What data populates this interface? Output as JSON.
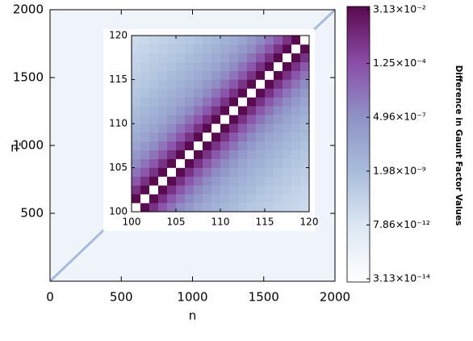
{
  "chart_data": [
    {
      "type": "line",
      "xlabel": "n",
      "ylabel": "n'",
      "xlim": [
        0,
        2000
      ],
      "ylim": [
        0,
        2000
      ],
      "xticks": [
        0,
        500,
        1000,
        1500,
        2000
      ],
      "yticks": [
        500,
        1000,
        1500,
        2000
      ],
      "background": "#eef4fa",
      "series": [
        {
          "color": "#a8bbdc",
          "x": [
            0,
            2000
          ],
          "values": [
            0,
            2000
          ]
        }
      ]
    },
    {
      "type": "heatmap",
      "xlim": [
        100,
        120
      ],
      "ylim": [
        100,
        120
      ],
      "xticks": [
        100,
        105,
        110,
        115,
        120
      ],
      "yticks": [
        100,
        105,
        110,
        115,
        120
      ],
      "zscale": "log",
      "zlim": [
        3.13e-14,
        0.0313
      ],
      "zticks": [
        {
          "value": 0.0313,
          "label": "3.13×10⁻²"
        },
        {
          "value": 0.000125,
          "label": "1.25×10⁻⁴"
        },
        {
          "value": 4.96e-07,
          "label": "4.96×10⁻⁷"
        },
        {
          "value": 1.98e-09,
          "label": "1.98×10⁻⁹"
        },
        {
          "value": 7.86e-12,
          "label": "7.86×10⁻¹²"
        },
        {
          "value": 3.13e-14,
          "label": "3.13×10⁻¹⁴"
        }
      ],
      "colormap": [
        "#ffffff",
        "#dde8f3",
        "#a9bddb",
        "#8f92c6",
        "#8a4ba6",
        "#5a0a4e"
      ],
      "colorbar_label": "Difference in Gaunt Factor Values",
      "z": [
        [
          3.13e-14,
          0.03,
          0.001,
          5e-05,
          5e-06,
          8e-07,
          2e-07,
          5e-08,
          2e-08,
          8e-09,
          4e-09,
          2e-09,
          1e-09,
          6e-10,
          4e-10,
          2.5e-10,
          1.5e-10,
          1e-10,
          7e-11,
          5e-11
        ],
        [
          0.03,
          3.13e-14,
          0.03,
          0.001,
          5e-05,
          5e-06,
          8e-07,
          2e-07,
          5e-08,
          2e-08,
          8e-09,
          4e-09,
          2e-09,
          1e-09,
          6e-10,
          4e-10,
          2.5e-10,
          1.5e-10,
          1e-10,
          7e-11
        ],
        [
          0.001,
          0.03,
          3.13e-14,
          0.03,
          0.001,
          5e-05,
          5e-06,
          8e-07,
          2e-07,
          5e-08,
          2e-08,
          8e-09,
          4e-09,
          2e-09,
          1e-09,
          6e-10,
          4e-10,
          2.5e-10,
          1.5e-10,
          1e-10
        ],
        [
          5e-05,
          0.001,
          0.03,
          3.13e-14,
          0.03,
          0.001,
          5e-05,
          5e-06,
          8e-07,
          2e-07,
          5e-08,
          2e-08,
          8e-09,
          4e-09,
          2e-09,
          1e-09,
          6e-10,
          4e-10,
          2.5e-10,
          1.5e-10
        ],
        [
          5e-06,
          5e-05,
          0.001,
          0.03,
          3.13e-14,
          0.03,
          0.001,
          5e-05,
          5e-06,
          8e-07,
          2e-07,
          5e-08,
          2e-08,
          8e-09,
          4e-09,
          2e-09,
          1e-09,
          6e-10,
          4e-10,
          2.5e-10
        ],
        [
          8e-07,
          5e-06,
          5e-05,
          0.001,
          0.03,
          3.13e-14,
          0.03,
          0.001,
          5e-05,
          5e-06,
          8e-07,
          2e-07,
          5e-08,
          2e-08,
          8e-09,
          4e-09,
          2e-09,
          1e-09,
          6e-10,
          4e-10
        ],
        [
          2e-07,
          8e-07,
          5e-06,
          5e-05,
          0.001,
          0.03,
          3.13e-14,
          0.03,
          0.001,
          5e-05,
          5e-06,
          8e-07,
          2e-07,
          5e-08,
          2e-08,
          8e-09,
          4e-09,
          2e-09,
          1e-09,
          6e-10
        ],
        [
          5e-08,
          2e-07,
          8e-07,
          5e-06,
          5e-05,
          0.001,
          0.03,
          3.13e-14,
          0.03,
          0.001,
          5e-05,
          5e-06,
          8e-07,
          2e-07,
          5e-08,
          2e-08,
          8e-09,
          4e-09,
          2e-09,
          1e-09
        ],
        [
          2e-08,
          5e-08,
          2e-07,
          8e-07,
          5e-06,
          5e-05,
          0.001,
          0.03,
          3.13e-14,
          0.03,
          0.001,
          5e-05,
          5e-06,
          8e-07,
          2e-07,
          5e-08,
          2e-08,
          8e-09,
          4e-09,
          2e-09
        ],
        [
          8e-09,
          2e-08,
          5e-08,
          2e-07,
          8e-07,
          5e-06,
          5e-05,
          0.001,
          0.03,
          3.13e-14,
          0.03,
          0.001,
          5e-05,
          5e-06,
          8e-07,
          2e-07,
          5e-08,
          2e-08,
          8e-09,
          4e-09
        ],
        [
          4e-09,
          8e-09,
          2e-08,
          5e-08,
          2e-07,
          8e-07,
          5e-06,
          5e-05,
          0.001,
          0.03,
          3.13e-14,
          0.03,
          0.001,
          5e-05,
          5e-06,
          8e-07,
          2e-07,
          5e-08,
          2e-08,
          8e-09
        ],
        [
          2e-09,
          4e-09,
          8e-09,
          2e-08,
          5e-08,
          2e-07,
          8e-07,
          5e-06,
          5e-05,
          0.001,
          0.03,
          3.13e-14,
          0.03,
          0.001,
          5e-05,
          5e-06,
          8e-07,
          2e-07,
          5e-08,
          2e-08
        ],
        [
          1e-09,
          2e-09,
          4e-09,
          8e-09,
          2e-08,
          5e-08,
          2e-07,
          8e-07,
          5e-06,
          5e-05,
          0.001,
          0.03,
          3.13e-14,
          0.03,
          0.001,
          5e-05,
          5e-06,
          8e-07,
          2e-07,
          5e-08
        ],
        [
          6e-10,
          1e-09,
          2e-09,
          4e-09,
          8e-09,
          2e-08,
          5e-08,
          2e-07,
          8e-07,
          5e-06,
          5e-05,
          0.001,
          0.03,
          3.13e-14,
          0.03,
          0.001,
          5e-05,
          5e-06,
          8e-07,
          2e-07
        ],
        [
          4e-10,
          6e-10,
          1e-09,
          2e-09,
          4e-09,
          8e-09,
          2e-08,
          5e-08,
          2e-07,
          8e-07,
          5e-06,
          5e-05,
          0.001,
          0.03,
          3.13e-14,
          0.03,
          0.001,
          5e-05,
          5e-06,
          8e-07
        ],
        [
          2.5e-10,
          4e-10,
          6e-10,
          1e-09,
          2e-09,
          4e-09,
          8e-09,
          2e-08,
          5e-08,
          2e-07,
          8e-07,
          5e-06,
          5e-05,
          0.001,
          0.03,
          3.13e-14,
          0.03,
          0.001,
          5e-05,
          5e-06
        ],
        [
          1.5e-10,
          2.5e-10,
          4e-10,
          6e-10,
          1e-09,
          2e-09,
          4e-09,
          8e-09,
          2e-08,
          5e-08,
          2e-07,
          8e-07,
          5e-06,
          5e-05,
          0.001,
          0.03,
          3.13e-14,
          0.03,
          0.001,
          5e-05
        ],
        [
          1e-10,
          1.5e-10,
          2.5e-10,
          4e-10,
          6e-10,
          1e-09,
          2e-09,
          4e-09,
          8e-09,
          2e-08,
          5e-08,
          2e-07,
          8e-07,
          5e-06,
          5e-05,
          0.001,
          0.03,
          3.13e-14,
          0.03,
          0.001
        ],
        [
          7e-11,
          1e-10,
          1.5e-10,
          2.5e-10,
          4e-10,
          6e-10,
          1e-09,
          2e-09,
          4e-09,
          8e-09,
          2e-08,
          5e-08,
          2e-07,
          8e-07,
          5e-06,
          5e-05,
          0.001,
          0.03,
          3.13e-14,
          0.03
        ],
        [
          5e-11,
          7e-11,
          1e-10,
          1.5e-10,
          2.5e-10,
          4e-10,
          6e-10,
          1e-09,
          2e-09,
          4e-09,
          8e-09,
          2e-08,
          5e-08,
          2e-07,
          8e-07,
          5e-06,
          5e-05,
          0.001,
          0.03,
          3.13e-14
        ]
      ]
    }
  ]
}
